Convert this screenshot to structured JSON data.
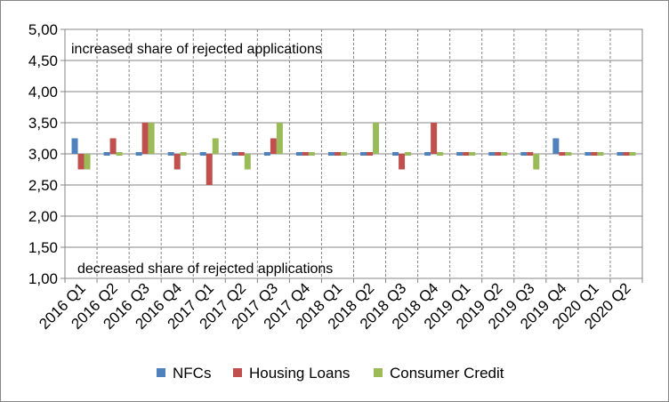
{
  "chart_data": {
    "type": "bar",
    "title": "",
    "xlabel": "",
    "ylabel": "",
    "ylim": [
      1,
      5
    ],
    "y_ticks": [
      "1,00",
      "1,50",
      "2,00",
      "2,50",
      "3,00",
      "3,50",
      "4,00",
      "4,50",
      "5,00"
    ],
    "baseline": 3.0,
    "grid": true,
    "legend_position": "bottom",
    "categories": [
      "2016 Q1",
      "2016 Q2",
      "2016 Q3",
      "2016 Q4",
      "2017 Q1",
      "2017 Q2",
      "2017 Q3",
      "2017 Q4",
      "2018 Q1",
      "2018 Q2",
      "2018 Q3",
      "2018 Q4",
      "2019 Q1",
      "2019 Q2",
      "2019 Q3",
      "2019 Q4",
      "2020 Q1",
      "2020 Q2"
    ],
    "series": [
      {
        "name": "NFCs",
        "color": "#4F81BD",
        "values": [
          3.25,
          3.0,
          3.0,
          3.0,
          3.0,
          3.0,
          3.0,
          3.0,
          3.0,
          3.0,
          3.0,
          3.0,
          3.0,
          3.0,
          3.0,
          3.25,
          3.0,
          3.0
        ]
      },
      {
        "name": "Housing Loans",
        "color": "#C0504D",
        "values": [
          2.75,
          3.25,
          3.5,
          2.75,
          2.5,
          3.0,
          3.25,
          3.0,
          3.0,
          3.0,
          2.75,
          3.5,
          3.0,
          3.0,
          3.0,
          3.0,
          3.0,
          3.0
        ]
      },
      {
        "name": "Consumer Credit",
        "color": "#9BBB59",
        "values": [
          2.75,
          3.0,
          3.5,
          3.0,
          3.25,
          2.75,
          3.5,
          3.0,
          3.0,
          3.5,
          3.0,
          3.0,
          3.0,
          3.0,
          2.75,
          3.0,
          3.0,
          3.0
        ]
      }
    ],
    "annotations": {
      "top": "increased  share of rejected applications",
      "bottom": "decreased share of rejected applications"
    }
  }
}
